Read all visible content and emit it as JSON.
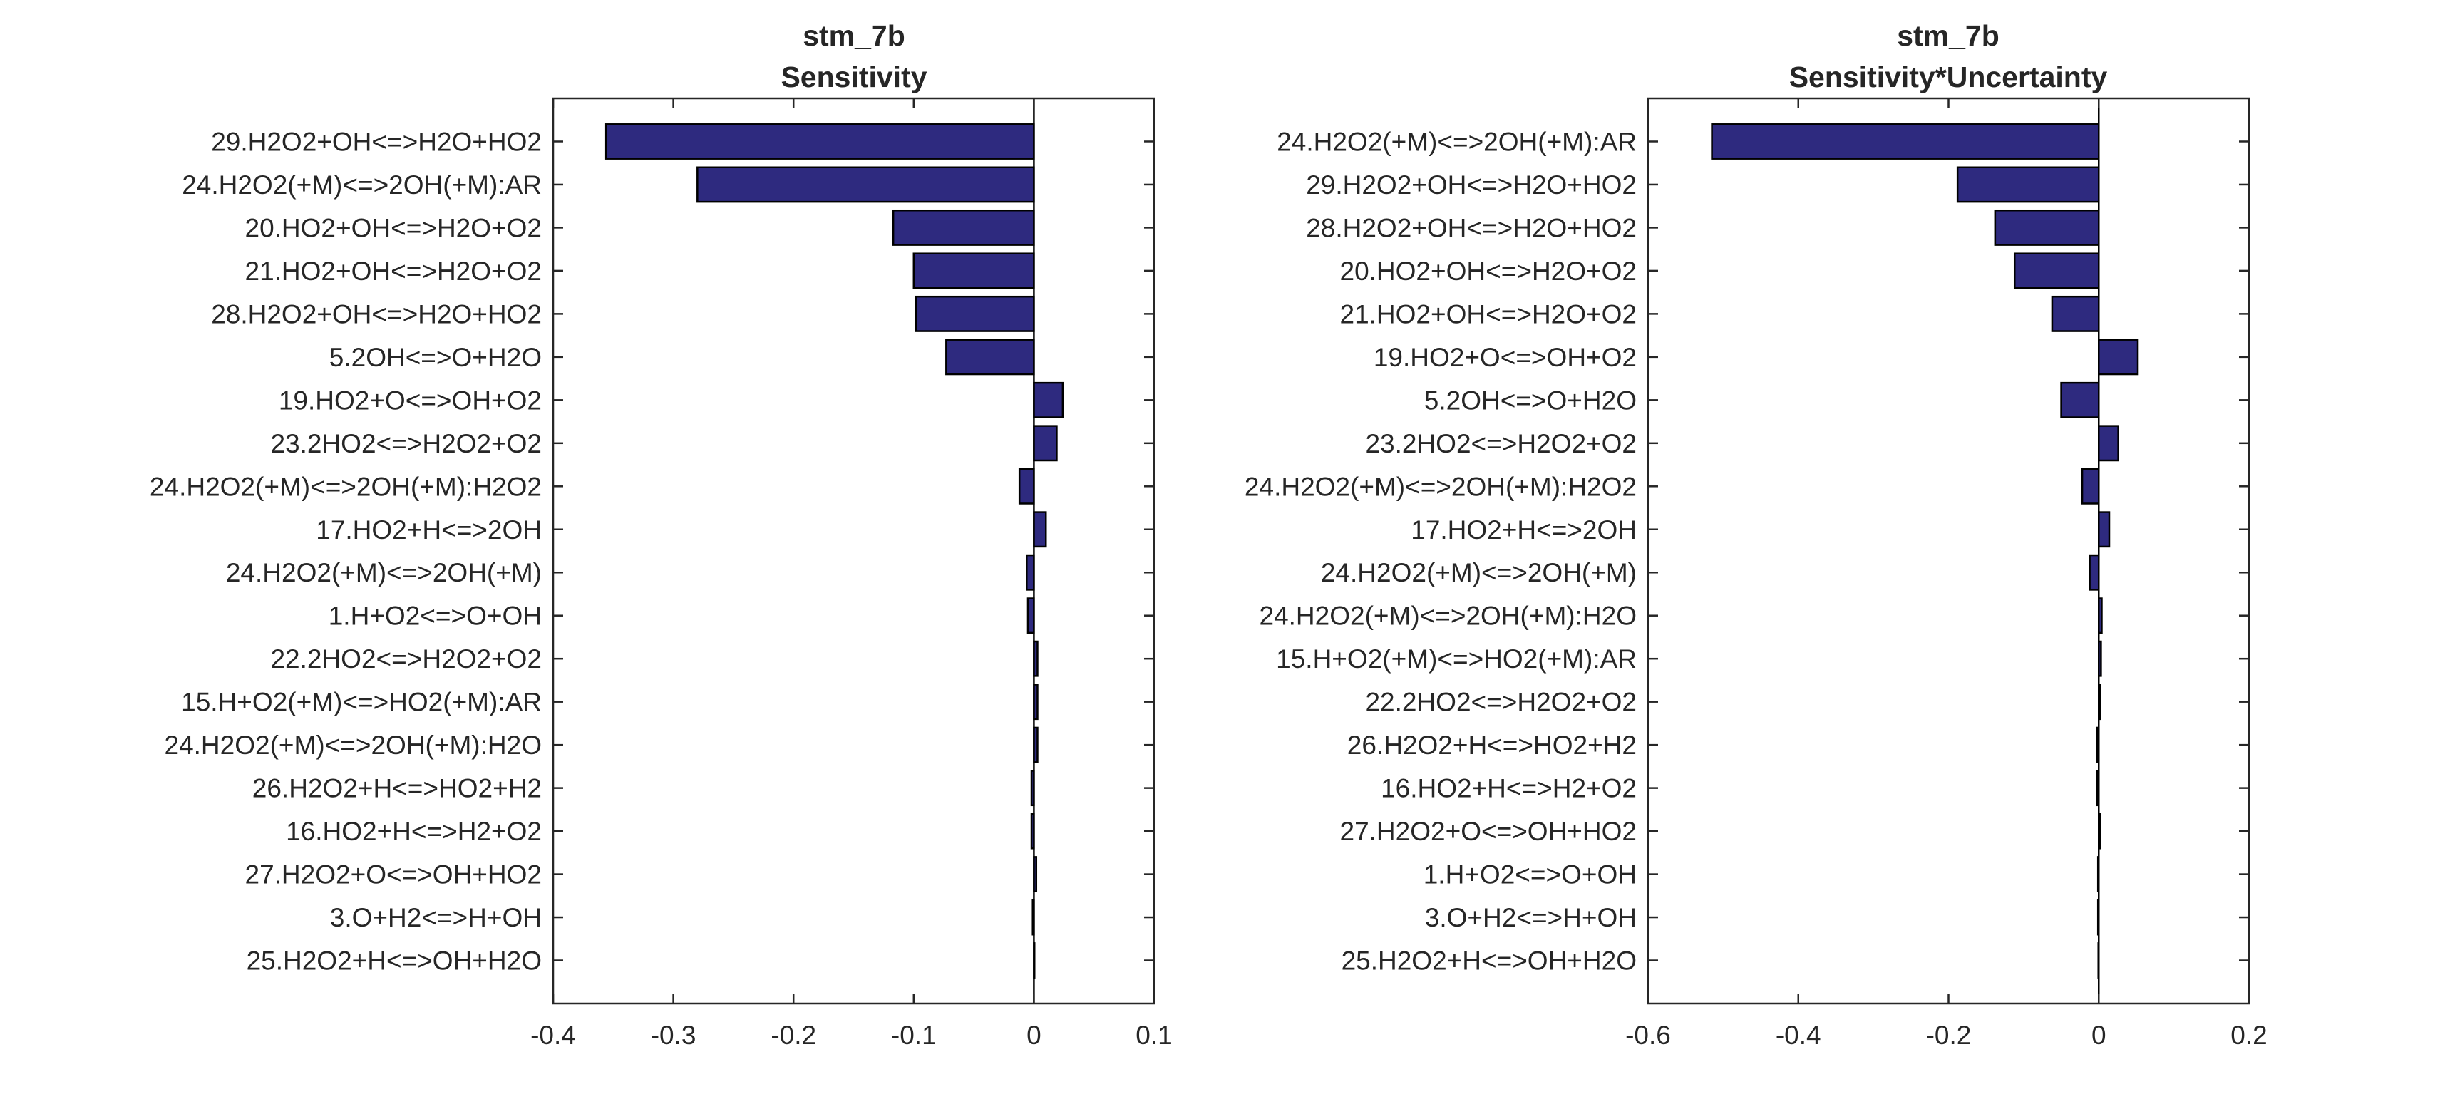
{
  "colors": {
    "bar": "#2E2A7F",
    "axis": "#262626",
    "background": "#ffffff"
  },
  "chart_data": [
    {
      "type": "bar",
      "orientation": "horizontal",
      "title": "stm_7b",
      "subtitle": "Sensitivity",
      "xlim": [
        -0.4,
        0.1
      ],
      "xticks": [
        -0.4,
        -0.3,
        -0.2,
        -0.1,
        0,
        0.1
      ],
      "xtick_labels": [
        "-0.4",
        "-0.3",
        "-0.2",
        "-0.1",
        "0",
        "0.1"
      ],
      "grid": false,
      "categories": [
        "29.H2O2+OH<=>H2O+HO2",
        "24.H2O2(+M)<=>2OH(+M):AR",
        "20.HO2+OH<=>H2O+O2",
        "21.HO2+OH<=>H2O+O2",
        "28.H2O2+OH<=>H2O+HO2",
        "5.2OH<=>O+H2O",
        "19.HO2+O<=>OH+O2",
        "23.2HO2<=>H2O2+O2",
        "24.H2O2(+M)<=>2OH(+M):H2O2",
        "17.HO2+H<=>2OH",
        "24.H2O2(+M)<=>2OH(+M)",
        "1.H+O2<=>O+OH",
        "22.2HO2<=>H2O2+O2",
        "15.H+O2(+M)<=>HO2(+M):AR",
        "24.H2O2(+M)<=>2OH(+M):H2O",
        "26.H2O2+H<=>HO2+H2",
        "16.HO2+H<=>H2+O2",
        "27.H2O2+O<=>OH+HO2",
        "3.O+H2<=>H+OH",
        "25.H2O2+H<=>OH+H2O"
      ],
      "values": [
        -0.356,
        -0.28,
        -0.117,
        -0.1,
        -0.098,
        -0.073,
        0.024,
        0.019,
        -0.012,
        0.01,
        -0.006,
        -0.005,
        0.003,
        0.003,
        0.003,
        -0.002,
        -0.002,
        0.002,
        -0.001,
        0.0005
      ]
    },
    {
      "type": "bar",
      "orientation": "horizontal",
      "title": "stm_7b",
      "subtitle": "Sensitivity*Uncertainty",
      "xlim": [
        -0.6,
        0.2
      ],
      "xticks": [
        -0.6,
        -0.4,
        -0.2,
        0,
        0.2
      ],
      "xtick_labels": [
        "-0.6",
        "-0.4",
        "-0.2",
        "0",
        "0.2"
      ],
      "grid": false,
      "categories": [
        "24.H2O2(+M)<=>2OH(+M):AR",
        "29.H2O2+OH<=>H2O+HO2",
        "28.H2O2+OH<=>H2O+HO2",
        "20.HO2+OH<=>H2O+O2",
        "21.HO2+OH<=>H2O+O2",
        "19.HO2+O<=>OH+O2",
        "5.2OH<=>O+H2O",
        "23.2HO2<=>H2O2+O2",
        "24.H2O2(+M)<=>2OH(+M):H2O2",
        "17.HO2+H<=>2OH",
        "24.H2O2(+M)<=>2OH(+M)",
        "24.H2O2(+M)<=>2OH(+M):H2O",
        "15.H+O2(+M)<=>HO2(+M):AR",
        "22.2HO2<=>H2O2+O2",
        "26.H2O2+H<=>HO2+H2",
        "16.HO2+H<=>H2+O2",
        "27.H2O2+O<=>OH+HO2",
        "1.H+O2<=>O+OH",
        "3.O+H2<=>H+OH",
        "25.H2O2+H<=>OH+H2O"
      ],
      "values": [
        -0.515,
        -0.188,
        -0.138,
        -0.112,
        -0.062,
        0.052,
        -0.05,
        0.026,
        -0.022,
        0.014,
        -0.012,
        0.004,
        0.003,
        0.002,
        -0.002,
        -0.002,
        0.002,
        -0.001,
        -0.001,
        -0.0005
      ]
    }
  ]
}
